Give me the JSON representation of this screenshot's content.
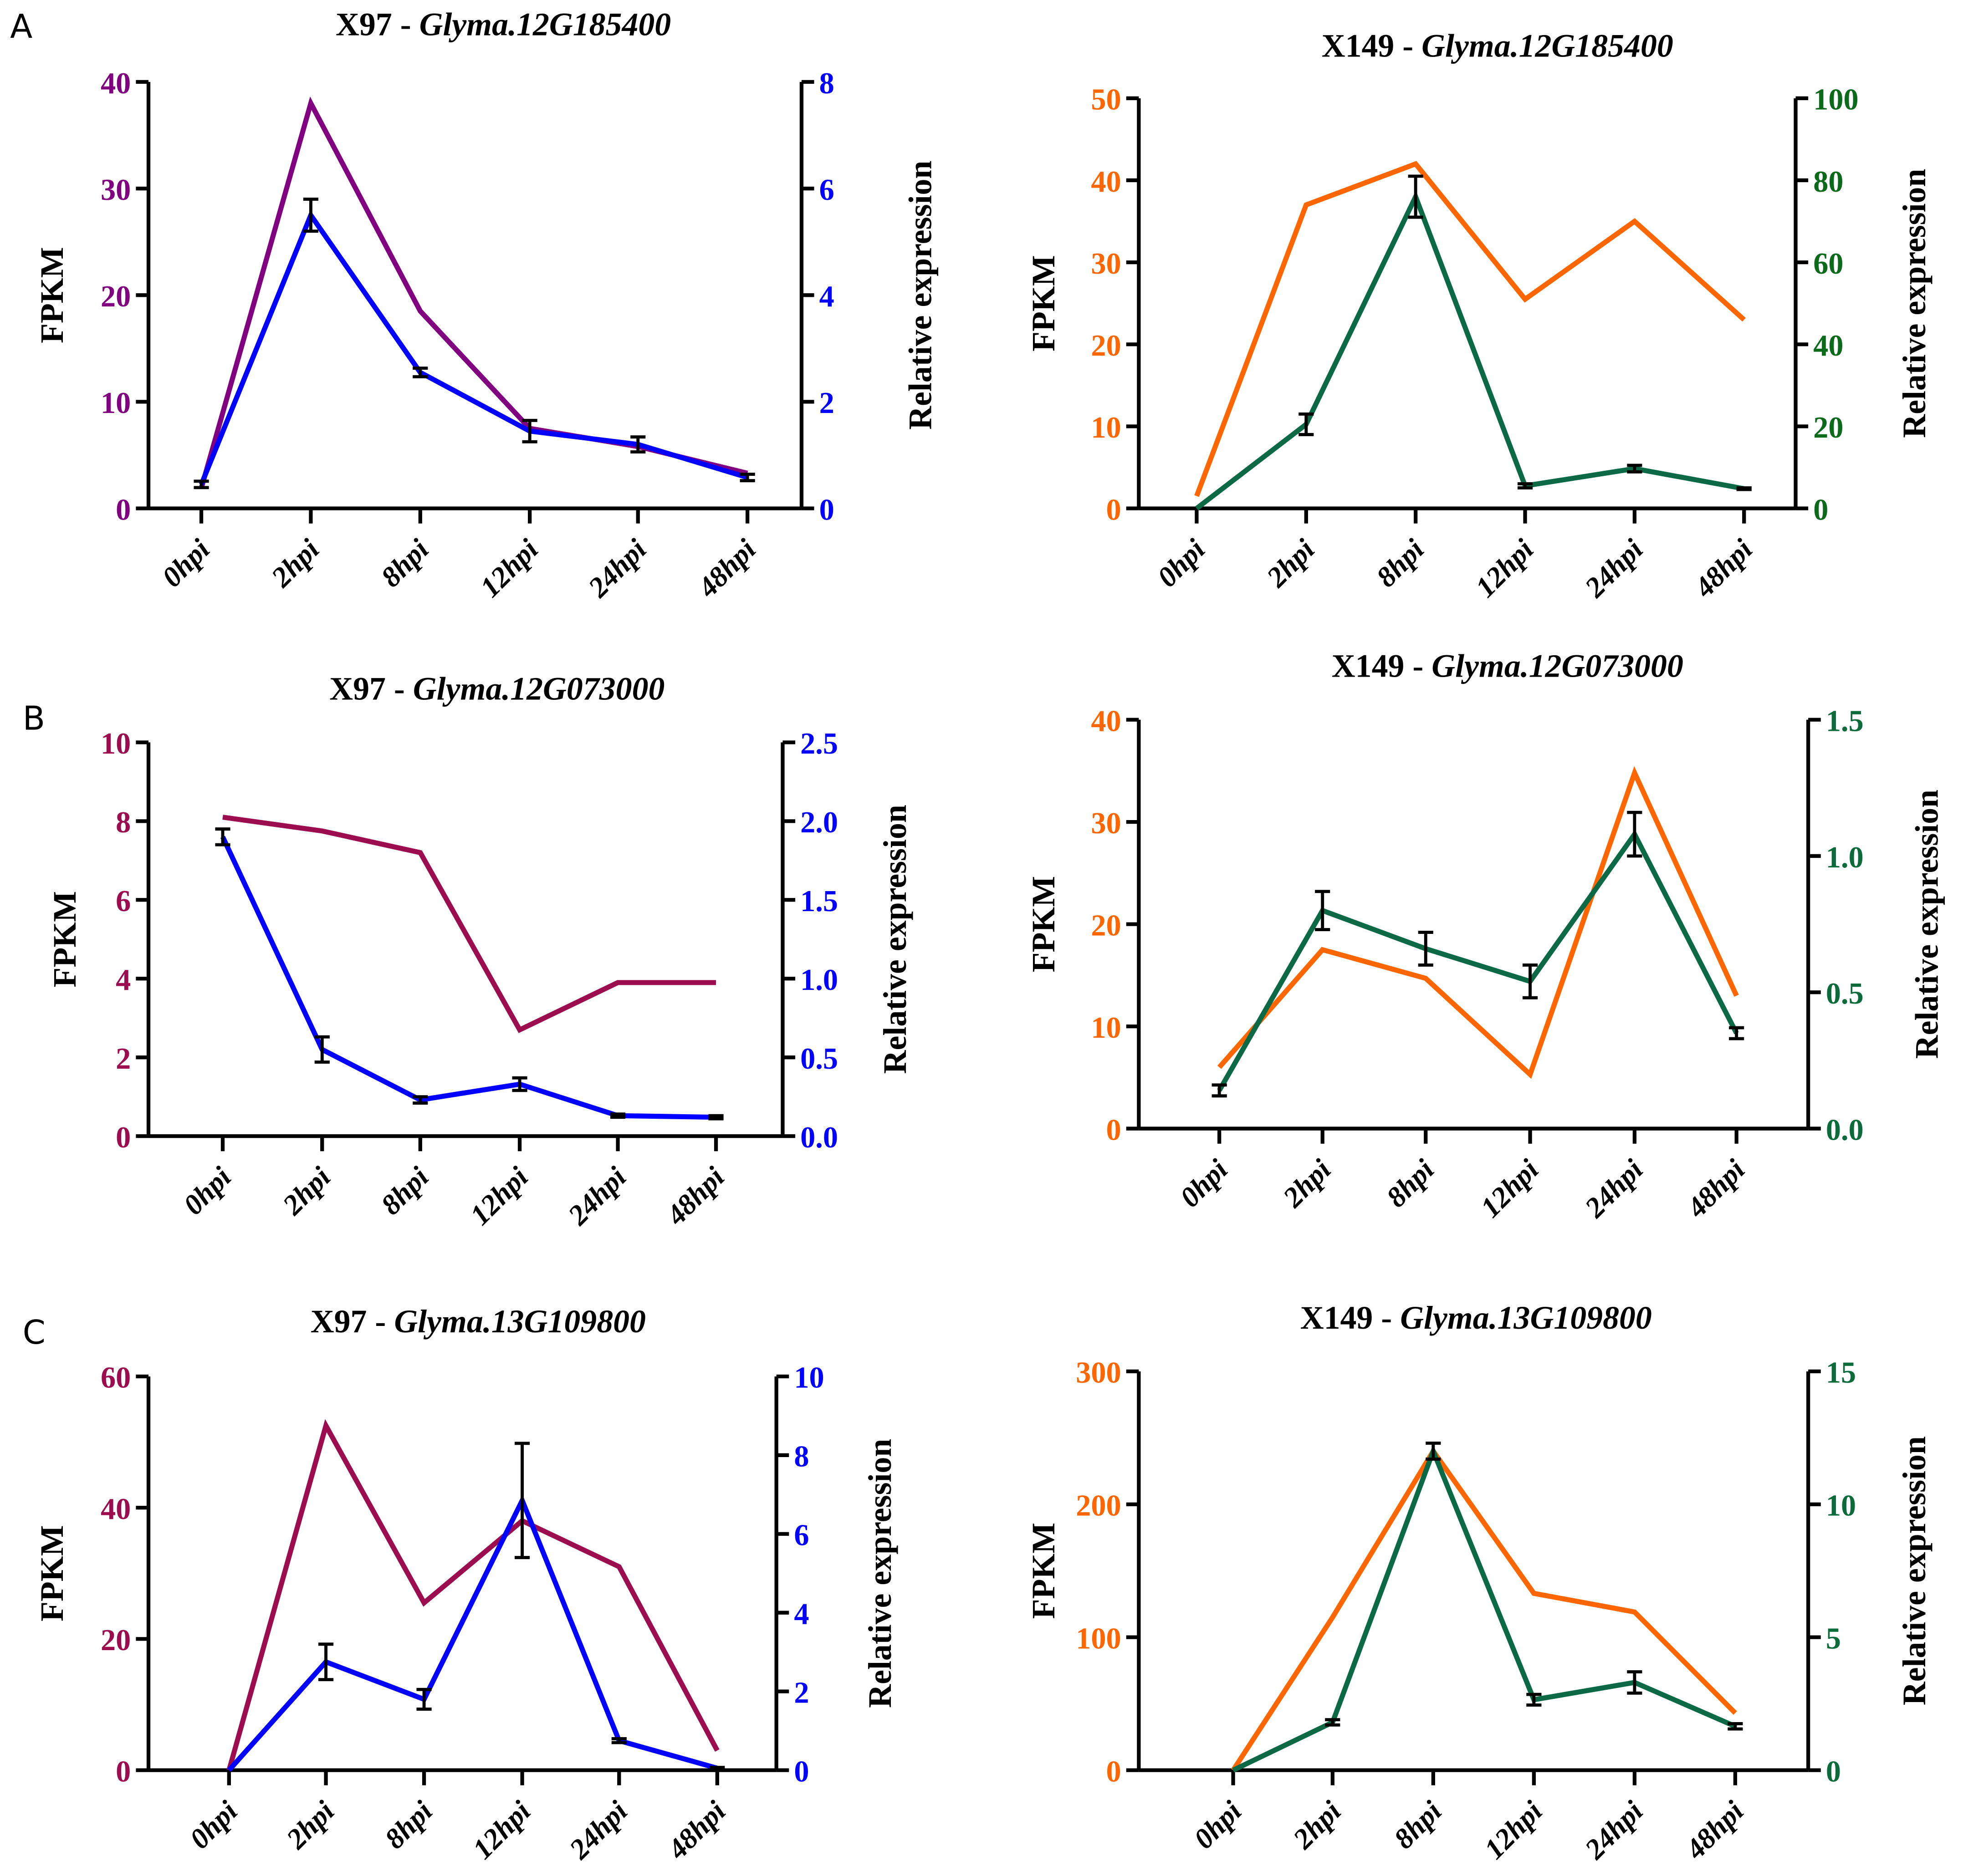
{
  "chart_data": [
    {
      "type": "line",
      "panel_label": "A",
      "title_prefix": "X97 - ",
      "title_gene": "Glyma.12G185400",
      "categories": [
        "0hpi",
        "2hpi",
        "8hpi",
        "12hpi",
        "24hpi",
        "48hpi"
      ],
      "left_axis": {
        "label": "FPKM",
        "ylim": [
          0,
          40
        ],
        "ticks": [
          0,
          10,
          20,
          30,
          40
        ],
        "tick_labels": [
          "0",
          "10",
          "20",
          "30",
          "40"
        ],
        "color": "#800080"
      },
      "right_axis": {
        "label": "Relative expression",
        "ylim": [
          0,
          8
        ],
        "ticks": [
          0,
          2,
          4,
          6,
          8
        ],
        "tick_labels": [
          "0",
          "2",
          "4",
          "6",
          "8"
        ],
        "color": "#0000ff"
      },
      "series": [
        {
          "axis": "left",
          "color": "#800080",
          "values": [
            1.9,
            38,
            18.5,
            7.5,
            5.8,
            3.3
          ]
        },
        {
          "axis": "right",
          "color": "#0000ff",
          "values": [
            0.45,
            5.5,
            2.55,
            1.45,
            1.2,
            0.58
          ],
          "errors": [
            0.06,
            0.3,
            0.08,
            0.2,
            0.14,
            0.06
          ]
        }
      ]
    },
    {
      "type": "line",
      "panel_label": "",
      "title_prefix": "X149 - ",
      "title_gene": "Glyma.12G185400",
      "categories": [
        "0hpi",
        "2hpi",
        "8hpi",
        "12hpi",
        "24hpi",
        "48hpi"
      ],
      "left_axis": {
        "label": "FPKM",
        "ylim": [
          0,
          50
        ],
        "ticks": [
          0,
          10,
          20,
          30,
          40,
          50
        ],
        "tick_labels": [
          "0",
          "10",
          "20",
          "30",
          "40",
          "50"
        ],
        "color": "#ff6600"
      },
      "right_axis": {
        "label": "Relative expression",
        "ylim": [
          0,
          100
        ],
        "ticks": [
          0,
          20,
          40,
          60,
          80,
          100
        ],
        "tick_labels": [
          "0",
          "20",
          "40",
          "60",
          "80",
          "100"
        ],
        "color": "#0b6b1b"
      },
      "series": [
        {
          "axis": "left",
          "color": "#ff6600",
          "values": [
            1.5,
            37,
            42,
            25.5,
            35,
            23
          ]
        },
        {
          "axis": "right",
          "color": "#0b6a45",
          "values": [
            0,
            20.5,
            76,
            5.5,
            9.7,
            4.8
          ],
          "errors": [
            0,
            2.5,
            5,
            0.5,
            0.8,
            0.2
          ]
        }
      ]
    },
    {
      "type": "line",
      "panel_label": "B",
      "title_prefix": "X97 - ",
      "title_gene": "Glyma.12G073000",
      "categories": [
        "0hpi",
        "2hpi",
        "8hpi",
        "12hpi",
        "24hpi",
        "48hpi"
      ],
      "left_axis": {
        "label": "FPKM",
        "ylim": [
          0,
          10
        ],
        "ticks": [
          0,
          2,
          4,
          6,
          8,
          10
        ],
        "tick_labels": [
          "0",
          "2",
          "4",
          "6",
          "8",
          "10"
        ],
        "color": "#9b0d4f"
      },
      "right_axis": {
        "label": "Relative expression",
        "ylim": [
          0,
          2.5
        ],
        "ticks": [
          0,
          0.5,
          1,
          1.5,
          2,
          2.5
        ],
        "tick_labels": [
          "0.0",
          "0.5",
          "1.0",
          "1.5",
          "2.0",
          "2.5"
        ],
        "color": "#0000ff"
      },
      "series": [
        {
          "axis": "left",
          "color": "#9b0d4f",
          "values": [
            8.1,
            7.75,
            7.2,
            2.7,
            3.9,
            3.9
          ]
        },
        {
          "axis": "right",
          "color": "#0000ff",
          "values": [
            1.9,
            0.55,
            0.23,
            0.33,
            0.13,
            0.12
          ],
          "errors": [
            0.05,
            0.08,
            0.02,
            0.04,
            0.01,
            0.01
          ]
        }
      ]
    },
    {
      "type": "line",
      "panel_label": "",
      "title_prefix": "X149 - ",
      "title_gene": "Glyma.12G073000",
      "categories": [
        "0hpi",
        "2hpi",
        "8hpi",
        "12hpi",
        "24hpi",
        "48hpi"
      ],
      "left_axis": {
        "label": "FPKM",
        "ylim": [
          0,
          40
        ],
        "ticks": [
          0,
          10,
          20,
          30,
          40
        ],
        "tick_labels": [
          "0",
          "10",
          "20",
          "30",
          "40"
        ],
        "color": "#ff6600"
      },
      "right_axis": {
        "label": "Relative expression",
        "ylim": [
          0,
          1.5
        ],
        "ticks": [
          0,
          0.5,
          1,
          1.5
        ],
        "tick_labels": [
          "0.0",
          "0.5",
          "1.0",
          "1.5"
        ],
        "color": "#0b6b3a"
      },
      "series": [
        {
          "axis": "left",
          "color": "#ff6600",
          "values": [
            6,
            17.5,
            14.7,
            5.3,
            34.8,
            13
          ]
        },
        {
          "axis": "right",
          "color": "#0b6a45",
          "values": [
            0.14,
            0.8,
            0.66,
            0.54,
            1.08,
            0.35
          ],
          "errors": [
            0.02,
            0.07,
            0.06,
            0.06,
            0.08,
            0.02
          ]
        }
      ]
    },
    {
      "type": "line",
      "panel_label": "C",
      "title_prefix": "X97 - ",
      "title_gene": "Glyma.13G109800",
      "categories": [
        "0hpi",
        "2hpi",
        "8hpi",
        "12hpi",
        "24hpi",
        "48hpi"
      ],
      "left_axis": {
        "label": "FPKM",
        "ylim": [
          0,
          60
        ],
        "ticks": [
          0,
          20,
          40,
          60
        ],
        "tick_labels": [
          "0",
          "20",
          "40",
          "60"
        ],
        "color": "#9b0d4f"
      },
      "right_axis": {
        "label": "Relative expression",
        "ylim": [
          0,
          10
        ],
        "ticks": [
          0,
          2,
          4,
          6,
          8,
          10
        ],
        "tick_labels": [
          "0",
          "2",
          "4",
          "6",
          "8",
          "10"
        ],
        "color": "#0000ff"
      },
      "series": [
        {
          "axis": "left",
          "color": "#9b0d4f",
          "values": [
            0,
            52.5,
            25.5,
            38,
            31,
            3
          ]
        },
        {
          "axis": "right",
          "color": "#0000ff",
          "values": [
            0,
            2.75,
            1.8,
            6.85,
            0.75,
            0.05
          ],
          "errors": [
            0,
            0.45,
            0.25,
            1.45,
            0.05,
            0.02
          ]
        }
      ]
    },
    {
      "type": "line",
      "panel_label": "",
      "title_prefix": "X149 - ",
      "title_gene": "Glyma.13G109800",
      "categories": [
        "0hpi",
        "2hpi",
        "8hpi",
        "12hpi",
        "24hpi",
        "48hpi"
      ],
      "left_axis": {
        "label": "FPKM",
        "ylim": [
          0,
          300
        ],
        "ticks": [
          0,
          100,
          200,
          300
        ],
        "tick_labels": [
          "0",
          "100",
          "200",
          "300"
        ],
        "color": "#ff6600"
      },
      "right_axis": {
        "label": "Relative expression",
        "ylim": [
          0,
          15
        ],
        "ticks": [
          0,
          5,
          10,
          15
        ],
        "tick_labels": [
          "0",
          "5",
          "10",
          "15"
        ],
        "color": "#0b6b3a"
      },
      "series": [
        {
          "axis": "left",
          "color": "#ff6600",
          "values": [
            0,
            115,
            240,
            133,
            119,
            43
          ]
        },
        {
          "axis": "right",
          "color": "#0b6a45",
          "values": [
            0,
            1.8,
            12,
            2.65,
            3.3,
            1.65
          ],
          "errors": [
            0,
            0.1,
            0.3,
            0.2,
            0.4,
            0.1
          ]
        }
      ]
    }
  ]
}
